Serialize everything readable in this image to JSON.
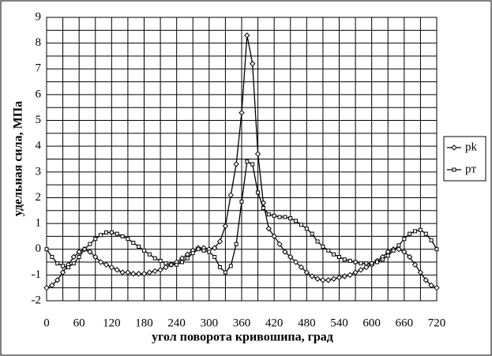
{
  "chart_data": {
    "type": "line",
    "x_label": "угол поворота кривошипа, град",
    "y_label": "удельная сила, МПа",
    "x": [
      0,
      10,
      20,
      30,
      40,
      50,
      60,
      70,
      80,
      90,
      100,
      110,
      120,
      130,
      140,
      150,
      160,
      170,
      180,
      190,
      200,
      210,
      220,
      230,
      240,
      250,
      260,
      270,
      280,
      290,
      300,
      310,
      320,
      330,
      340,
      350,
      360,
      370,
      380,
      390,
      400,
      410,
      420,
      430,
      440,
      450,
      460,
      470,
      480,
      490,
      500,
      510,
      520,
      530,
      540,
      550,
      560,
      570,
      580,
      590,
      600,
      610,
      620,
      630,
      640,
      650,
      660,
      670,
      680,
      690,
      700,
      710,
      720
    ],
    "series": [
      {
        "name": "pk",
        "color": "#000000",
        "marker": "diamond",
        "values": [
          -1.5,
          -1.4,
          -1.2,
          -0.9,
          -0.6,
          -0.3,
          -0.1,
          0.0,
          -0.1,
          -0.3,
          -0.5,
          -0.6,
          -0.7,
          -0.8,
          -0.9,
          -0.9,
          -0.95,
          -0.95,
          -0.95,
          -0.9,
          -0.85,
          -0.8,
          -0.7,
          -0.6,
          -0.5,
          -0.35,
          -0.2,
          -0.05,
          0.05,
          0.05,
          0.0,
          0.05,
          0.3,
          0.9,
          2.1,
          3.3,
          5.3,
          8.3,
          7.2,
          3.7,
          1.8,
          0.8,
          0.5,
          0.2,
          -0.1,
          -0.3,
          -0.5,
          -0.7,
          -0.9,
          -1.05,
          -1.15,
          -1.2,
          -1.2,
          -1.15,
          -1.1,
          -1.05,
          -1.0,
          -0.9,
          -0.8,
          -0.7,
          -0.6,
          -0.45,
          -0.3,
          -0.1,
          0.0,
          0.0,
          -0.1,
          -0.3,
          -0.6,
          -0.9,
          -1.2,
          -1.4,
          -1.5
        ]
      },
      {
        "name": "pт",
        "color": "#000000",
        "marker": "square",
        "values": [
          0.0,
          -0.3,
          -0.55,
          -0.65,
          -0.7,
          -0.55,
          -0.3,
          0.0,
          0.2,
          0.4,
          0.55,
          0.65,
          0.65,
          0.6,
          0.5,
          0.4,
          0.25,
          0.1,
          -0.05,
          -0.2,
          -0.35,
          -0.45,
          -0.55,
          -0.6,
          -0.6,
          -0.5,
          -0.35,
          -0.15,
          0.0,
          -0.05,
          -0.1,
          -0.3,
          -0.7,
          -0.9,
          -0.65,
          0.2,
          1.85,
          3.4,
          3.3,
          2.2,
          1.6,
          1.35,
          1.3,
          1.25,
          1.25,
          1.2,
          1.1,
          0.95,
          0.8,
          0.6,
          0.3,
          0.1,
          -0.05,
          -0.2,
          -0.3,
          -0.4,
          -0.45,
          -0.5,
          -0.55,
          -0.55,
          -0.55,
          -0.5,
          -0.4,
          -0.25,
          -0.05,
          0.15,
          0.4,
          0.6,
          0.7,
          0.75,
          0.6,
          0.35,
          0.0
        ]
      }
    ],
    "xlim": [
      0,
      720
    ],
    "xticks": [
      0,
      60,
      120,
      180,
      240,
      300,
      360,
      420,
      480,
      540,
      600,
      660,
      720
    ],
    "ylim": [
      -2,
      9
    ],
    "yticks": [
      -2,
      -1,
      0,
      1,
      2,
      3,
      4,
      5,
      6,
      7,
      8,
      9
    ],
    "grid": true,
    "legend": "right"
  }
}
